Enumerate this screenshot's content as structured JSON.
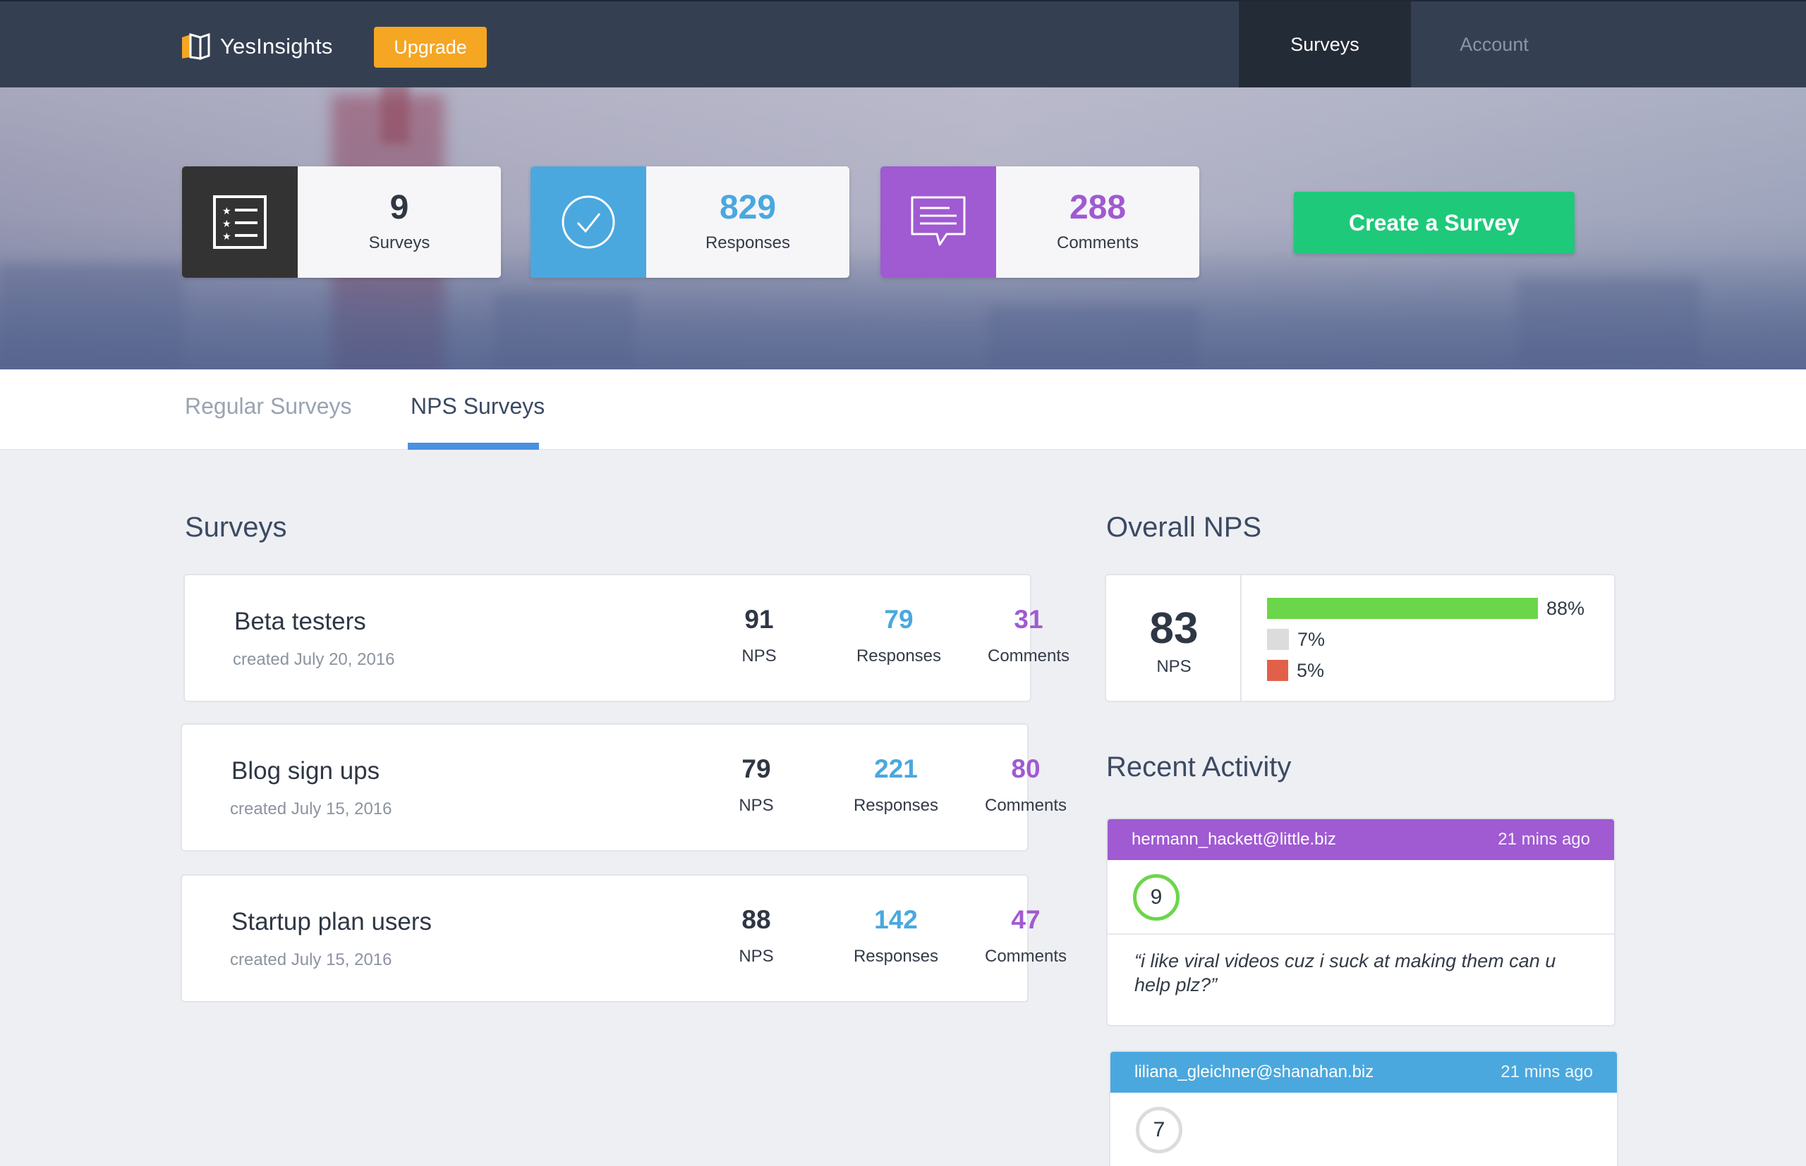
{
  "brand": {
    "name": "YesInsights",
    "accent": "#f5a623"
  },
  "nav": {
    "upgrade_label": "Upgrade",
    "surveys_label": "Surveys",
    "account_label": "Account"
  },
  "stats": [
    {
      "value": "9",
      "label": "Surveys",
      "icon": "list-icon",
      "color": "#333333"
    },
    {
      "value": "829",
      "label": "Responses",
      "icon": "check-circle-icon",
      "color": "#4aa8df"
    },
    {
      "value": "288",
      "label": "Comments",
      "icon": "speech-bubble-icon",
      "color": "#a05ad2"
    }
  ],
  "create_button_label": "Create a Survey",
  "tabs": [
    {
      "label": "Regular Surveys",
      "active": false
    },
    {
      "label": "NPS Surveys",
      "active": true
    }
  ],
  "surveys_section": {
    "title": "Surveys",
    "items": [
      {
        "name": "Beta testers",
        "created": "created July 20, 2016",
        "nps": "91",
        "nps_label": "NPS",
        "responses": "79",
        "responses_label": "Responses",
        "comments": "31",
        "comments_label": "Comments"
      },
      {
        "name": "Blog sign ups",
        "created": "created July 15, 2016",
        "nps": "79",
        "nps_label": "NPS",
        "responses": "221",
        "responses_label": "Responses",
        "comments": "80",
        "comments_label": "Comments"
      },
      {
        "name": "Startup plan users",
        "created": "created July 15, 2016",
        "nps": "88",
        "nps_label": "NPS",
        "responses": "142",
        "responses_label": "Responses",
        "comments": "47",
        "comments_label": "Comments"
      }
    ]
  },
  "overall_nps": {
    "title": "Overall NPS",
    "score": "83",
    "score_label": "NPS",
    "breakdown": [
      {
        "percent": "88%",
        "fraction": 0.88,
        "color": "#6bd64a"
      },
      {
        "percent": "7%",
        "fraction": 0.07,
        "color": "#dcdcdc"
      },
      {
        "percent": "5%",
        "fraction": 0.05,
        "color": "#e2604a"
      }
    ]
  },
  "recent_activity": {
    "title": "Recent Activity",
    "items": [
      {
        "email": "hermann_hackett@little.biz",
        "time": "21 mins ago",
        "score": "9",
        "header_color": "#a05ad2",
        "ring_color": "#6bd64a",
        "comment": "“i like viral videos cuz i suck at making them can u help plz?”"
      },
      {
        "email": "liliana_gleichner@shanahan.biz",
        "time": "21 mins ago",
        "score": "7",
        "header_color": "#4aa8df",
        "ring_color": "#dcdcdc",
        "comment": ""
      }
    ]
  }
}
